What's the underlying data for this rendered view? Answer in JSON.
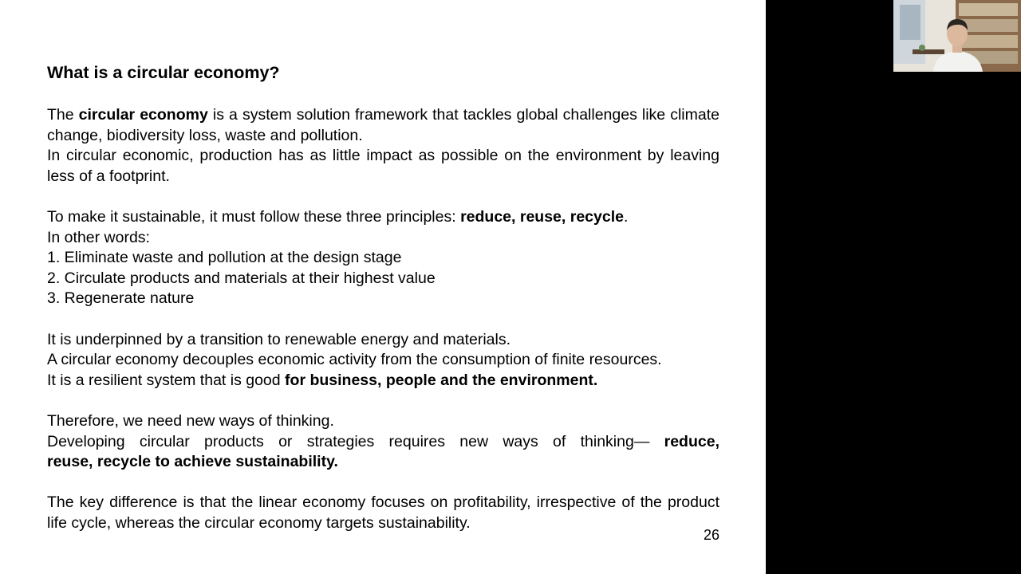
{
  "slide": {
    "title": "What is a circular economy?",
    "p1": {
      "pre": "The ",
      "bold": "circular economy",
      "post": " is a system solution framework that tackles global challenges like climate change, biodiversity loss, waste and pollution."
    },
    "p2": "In circular economic, production has as little impact as possible on the environment by leaving less of a footprint.",
    "p3": {
      "pre": "To make it sustainable, it must follow these three principles: ",
      "bold": "reduce, reuse, recycle",
      "post": "."
    },
    "p4": "In other words:",
    "list": [
      "1. Eliminate waste and pollution at the design stage",
      "2. Circulate products and materials at their highest value",
      "3. Regenerate nature"
    ],
    "p5": "It is underpinned by a transition to renewable energy and materials.",
    "p6": "A circular economy decouples economic activity from the consumption of finite resources.",
    "p7": {
      "pre": "It is a resilient system that is good ",
      "bold": "for business, people and the environment."
    },
    "p8": "Therefore, we need new ways of thinking.",
    "p9": {
      "line1_pre": "Developing circular products or strategies requires new ways of thinking— ",
      "line1_bold": "reduce,",
      "line2_bold": "reuse, recycle to achieve sustainability."
    },
    "p10": "The key difference is that the linear economy focuses on profitability, irrespective of the product life cycle, whereas the circular economy targets sustainability.",
    "page_number": "26"
  },
  "webcam": {
    "icon": "presenter-video-icon",
    "wall_color": "#e8e4dc",
    "shelf_color": "#7a5a3c",
    "shirt_color": "#f2f2f0"
  }
}
